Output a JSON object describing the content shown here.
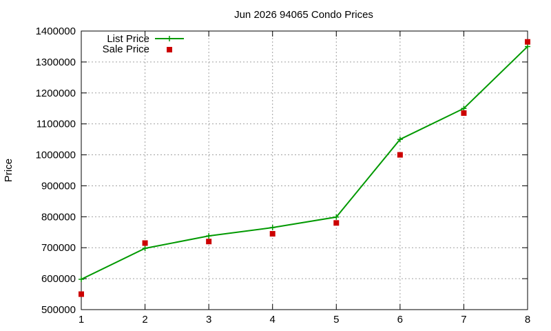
{
  "chart_data": {
    "type": "line",
    "title": "Jun 2026 94065 Condo Prices",
    "xlabel": "",
    "ylabel": "Price",
    "x": [
      1,
      2,
      3,
      4,
      5,
      6,
      7,
      8
    ],
    "xlim": [
      1,
      8
    ],
    "ylim": [
      500000,
      1400000
    ],
    "yticks": [
      500000,
      600000,
      700000,
      800000,
      900000,
      1000000,
      1100000,
      1200000,
      1300000,
      1400000
    ],
    "xticks": [
      1,
      2,
      3,
      4,
      5,
      6,
      7,
      8
    ],
    "grid": true,
    "legend_position": "top-left",
    "series": [
      {
        "name": "List Price",
        "style": "line-with-plus-markers",
        "color": "#009900",
        "values": [
          598000,
          698000,
          738000,
          765000,
          799000,
          1050000,
          1150000,
          1350000
        ]
      },
      {
        "name": "Sale Price",
        "style": "square-markers",
        "color": "#cc0000",
        "values": [
          550000,
          715000,
          720000,
          745000,
          780000,
          1000000,
          1135000,
          1365000
        ]
      }
    ]
  }
}
